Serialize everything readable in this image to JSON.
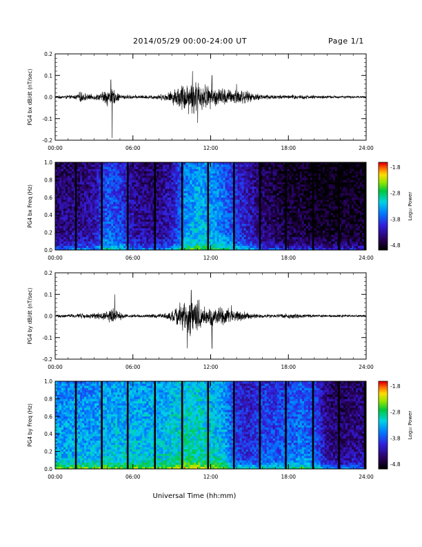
{
  "header": {
    "title": "2014/05/29  00:00-24:00 UT",
    "page": "Page 1/1"
  },
  "footer": {
    "xlabel": "Universal Time (hh:mm)"
  },
  "chart_data": [
    {
      "type": "line",
      "ylabel": "PG4 bx dB/dt (nT/sec)",
      "xlim": [
        0,
        24
      ],
      "ylim": [
        -0.2,
        0.2
      ],
      "yticks": [
        "-0.2",
        "-0.1",
        "0.0",
        "0.1",
        "0.2"
      ],
      "xticks": [
        "00:00",
        "06:00",
        "12:00",
        "18:00",
        "24:00"
      ],
      "series": [
        {
          "x": [
            0.0,
            0.5,
            1.0,
            1.5,
            2.0,
            2.5,
            3.0,
            3.5,
            4.0,
            4.5,
            5.0,
            5.5,
            6.0,
            6.5,
            7.0,
            7.5,
            8.0,
            8.5,
            9.0,
            9.5,
            10.0,
            10.5,
            11.0,
            11.5,
            12.0,
            12.5,
            13.0,
            13.5,
            14.0,
            14.5,
            15.0,
            15.5,
            16.0,
            16.5,
            17.0,
            17.5,
            18.0,
            18.5,
            19.0,
            19.5,
            20.0,
            20.5,
            21.0,
            21.5,
            22.0,
            22.5,
            23.0,
            23.5,
            24.0
          ],
          "envelope": [
            0.008,
            0.008,
            0.01,
            0.01,
            0.03,
            0.015,
            0.015,
            0.02,
            0.05,
            0.04,
            0.015,
            0.012,
            0.01,
            0.01,
            0.01,
            0.012,
            0.015,
            0.02,
            0.035,
            0.06,
            0.08,
            0.09,
            0.085,
            0.07,
            0.06,
            0.05,
            0.05,
            0.04,
            0.045,
            0.04,
            0.025,
            0.02,
            0.015,
            0.015,
            0.012,
            0.012,
            0.01,
            0.015,
            0.012,
            0.01,
            0.01,
            0.008,
            0.008,
            0.008,
            0.007,
            0.007,
            0.006,
            0.006,
            0.006
          ],
          "spikes": [
            {
              "x": 4.4,
              "y": -0.19
            },
            {
              "x": 4.3,
              "y": 0.08
            },
            {
              "x": 10.6,
              "y": 0.12
            },
            {
              "x": 11.0,
              "y": -0.12
            },
            {
              "x": 12.1,
              "y": 0.1
            },
            {
              "x": 14.0,
              "y": 0.06
            }
          ]
        }
      ]
    },
    {
      "type": "heatmap",
      "ylabel": "PG4 bx Freq (Hz)",
      "xlim": [
        0,
        24
      ],
      "ylim": [
        0,
        1
      ],
      "yticks": [
        "0.0",
        "0.2",
        "0.4",
        "0.6",
        "0.8",
        "1.0"
      ],
      "xticks": [
        "00:00",
        "06:00",
        "12:00",
        "18:00",
        "24:00"
      ],
      "colorbar": {
        "label": "Log₁₀ Power",
        "min": -4.8,
        "max": -1.8,
        "ticks": [
          "-1.8",
          "-2.8",
          "-3.8",
          "-4.8"
        ]
      },
      "data_gaps_hours": [
        1.6,
        3.6,
        5.6,
        7.7,
        9.8,
        11.8,
        13.8,
        15.8,
        17.8,
        19.9,
        21.9,
        23.9
      ],
      "level_profile_hours": [
        0,
        1,
        2,
        3,
        4,
        5,
        6,
        7,
        8,
        9,
        10,
        11,
        12,
        13,
        14,
        15,
        16,
        17,
        18,
        19,
        20,
        21,
        22,
        23,
        24
      ],
      "level_profile": [
        -4.3,
        -4.2,
        -4.2,
        -4.1,
        -3.6,
        -3.7,
        -4.1,
        -4.2,
        -4.2,
        -4.0,
        -3.4,
        -3.2,
        -3.3,
        -3.5,
        -3.8,
        -4.0,
        -4.3,
        -4.4,
        -4.5,
        -4.5,
        -4.6,
        -4.6,
        -4.6,
        -4.6,
        -4.6
      ]
    },
    {
      "type": "line",
      "ylabel": "PG4 by dB/dt (nT/sec)",
      "xlim": [
        0,
        24
      ],
      "ylim": [
        -0.2,
        0.2
      ],
      "yticks": [
        "-0.2",
        "-0.1",
        "0.0",
        "0.1",
        "0.2"
      ],
      "xticks": [
        "00:00",
        "06:00",
        "12:00",
        "18:00",
        "24:00"
      ],
      "series": [
        {
          "x": [
            0.0,
            0.5,
            1.0,
            1.5,
            2.0,
            2.5,
            3.0,
            3.5,
            4.0,
            4.5,
            5.0,
            5.5,
            6.0,
            6.5,
            7.0,
            7.5,
            8.0,
            8.5,
            9.0,
            9.5,
            10.0,
            10.5,
            11.0,
            11.5,
            12.0,
            12.5,
            13.0,
            13.5,
            14.0,
            14.5,
            15.0,
            15.5,
            16.0,
            16.5,
            17.0,
            17.5,
            18.0,
            18.5,
            19.0,
            19.5,
            20.0,
            20.5,
            21.0,
            21.5,
            22.0,
            22.5,
            23.0,
            23.5,
            24.0
          ],
          "envelope": [
            0.008,
            0.008,
            0.01,
            0.01,
            0.015,
            0.012,
            0.015,
            0.02,
            0.03,
            0.045,
            0.02,
            0.01,
            0.01,
            0.008,
            0.008,
            0.01,
            0.012,
            0.015,
            0.03,
            0.06,
            0.09,
            0.1,
            0.09,
            0.06,
            0.05,
            0.045,
            0.05,
            0.04,
            0.03,
            0.025,
            0.015,
            0.012,
            0.01,
            0.01,
            0.01,
            0.012,
            0.015,
            0.012,
            0.01,
            0.008,
            0.008,
            0.008,
            0.007,
            0.007,
            0.007,
            0.006,
            0.006,
            0.006,
            0.006
          ],
          "spikes": [
            {
              "x": 4.6,
              "y": 0.1
            },
            {
              "x": 10.2,
              "y": -0.15
            },
            {
              "x": 10.5,
              "y": 0.12
            },
            {
              "x": 12.1,
              "y": -0.15
            },
            {
              "x": 13.6,
              "y": 0.05
            }
          ]
        }
      ]
    },
    {
      "type": "heatmap",
      "ylabel": "PG4 by Freq (Hz)",
      "xlim": [
        0,
        24
      ],
      "ylim": [
        0,
        1
      ],
      "yticks": [
        "0.0",
        "0.2",
        "0.4",
        "0.6",
        "0.8",
        "1.0"
      ],
      "xticks": [
        "00:00",
        "06:00",
        "12:00",
        "18:00",
        "24:00"
      ],
      "colorbar": {
        "label": "Log₁₀ Power",
        "min": -4.8,
        "max": -1.8,
        "ticks": [
          "-1.8",
          "-2.8",
          "-3.8",
          "-4.8"
        ]
      },
      "data_gaps_hours": [
        1.6,
        3.6,
        5.6,
        7.7,
        9.8,
        11.8,
        13.8,
        15.8,
        17.8,
        19.9,
        21.9,
        23.9
      ],
      "level_profile_hours": [
        0,
        1,
        2,
        3,
        4,
        5,
        6,
        7,
        8,
        9,
        10,
        11,
        12,
        13,
        14,
        15,
        16,
        17,
        18,
        19,
        20,
        21,
        22,
        23,
        24
      ],
      "level_profile": [
        -3.3,
        -3.3,
        -3.3,
        -3.3,
        -3.2,
        -3.2,
        -3.2,
        -3.2,
        -3.2,
        -3.1,
        -3.0,
        -3.0,
        -3.1,
        -3.2,
        -3.8,
        -3.9,
        -3.7,
        -3.7,
        -3.6,
        -3.5,
        -3.6,
        -4.2,
        -4.3,
        -4.2,
        -4.2
      ]
    }
  ]
}
